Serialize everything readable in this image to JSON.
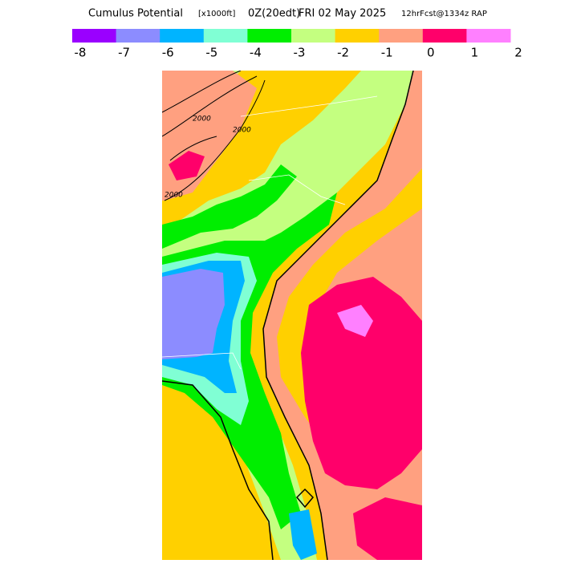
{
  "header": {
    "title": "Cumulus Potential",
    "units": "[x1000ft]",
    "run": "0Z(20edt)",
    "date": "FRI 02 May 2025",
    "forecast": "12hrFcst@1334z RAP"
  },
  "colorbar": {
    "colors": [
      "#9a00ff",
      "#8c8cff",
      "#00b4ff",
      "#80ffd4",
      "#00ee00",
      "#c4ff80",
      "#ffd000",
      "#ffa080",
      "#ff006a",
      "#ff80ff"
    ],
    "ticks": [
      "-8",
      "-7",
      "-6",
      "-5",
      "-4",
      "-3",
      "-2",
      "-1",
      "0",
      "1",
      "2"
    ]
  },
  "map": {
    "contour_labels": [
      "2000",
      "2000",
      "2000"
    ]
  }
}
